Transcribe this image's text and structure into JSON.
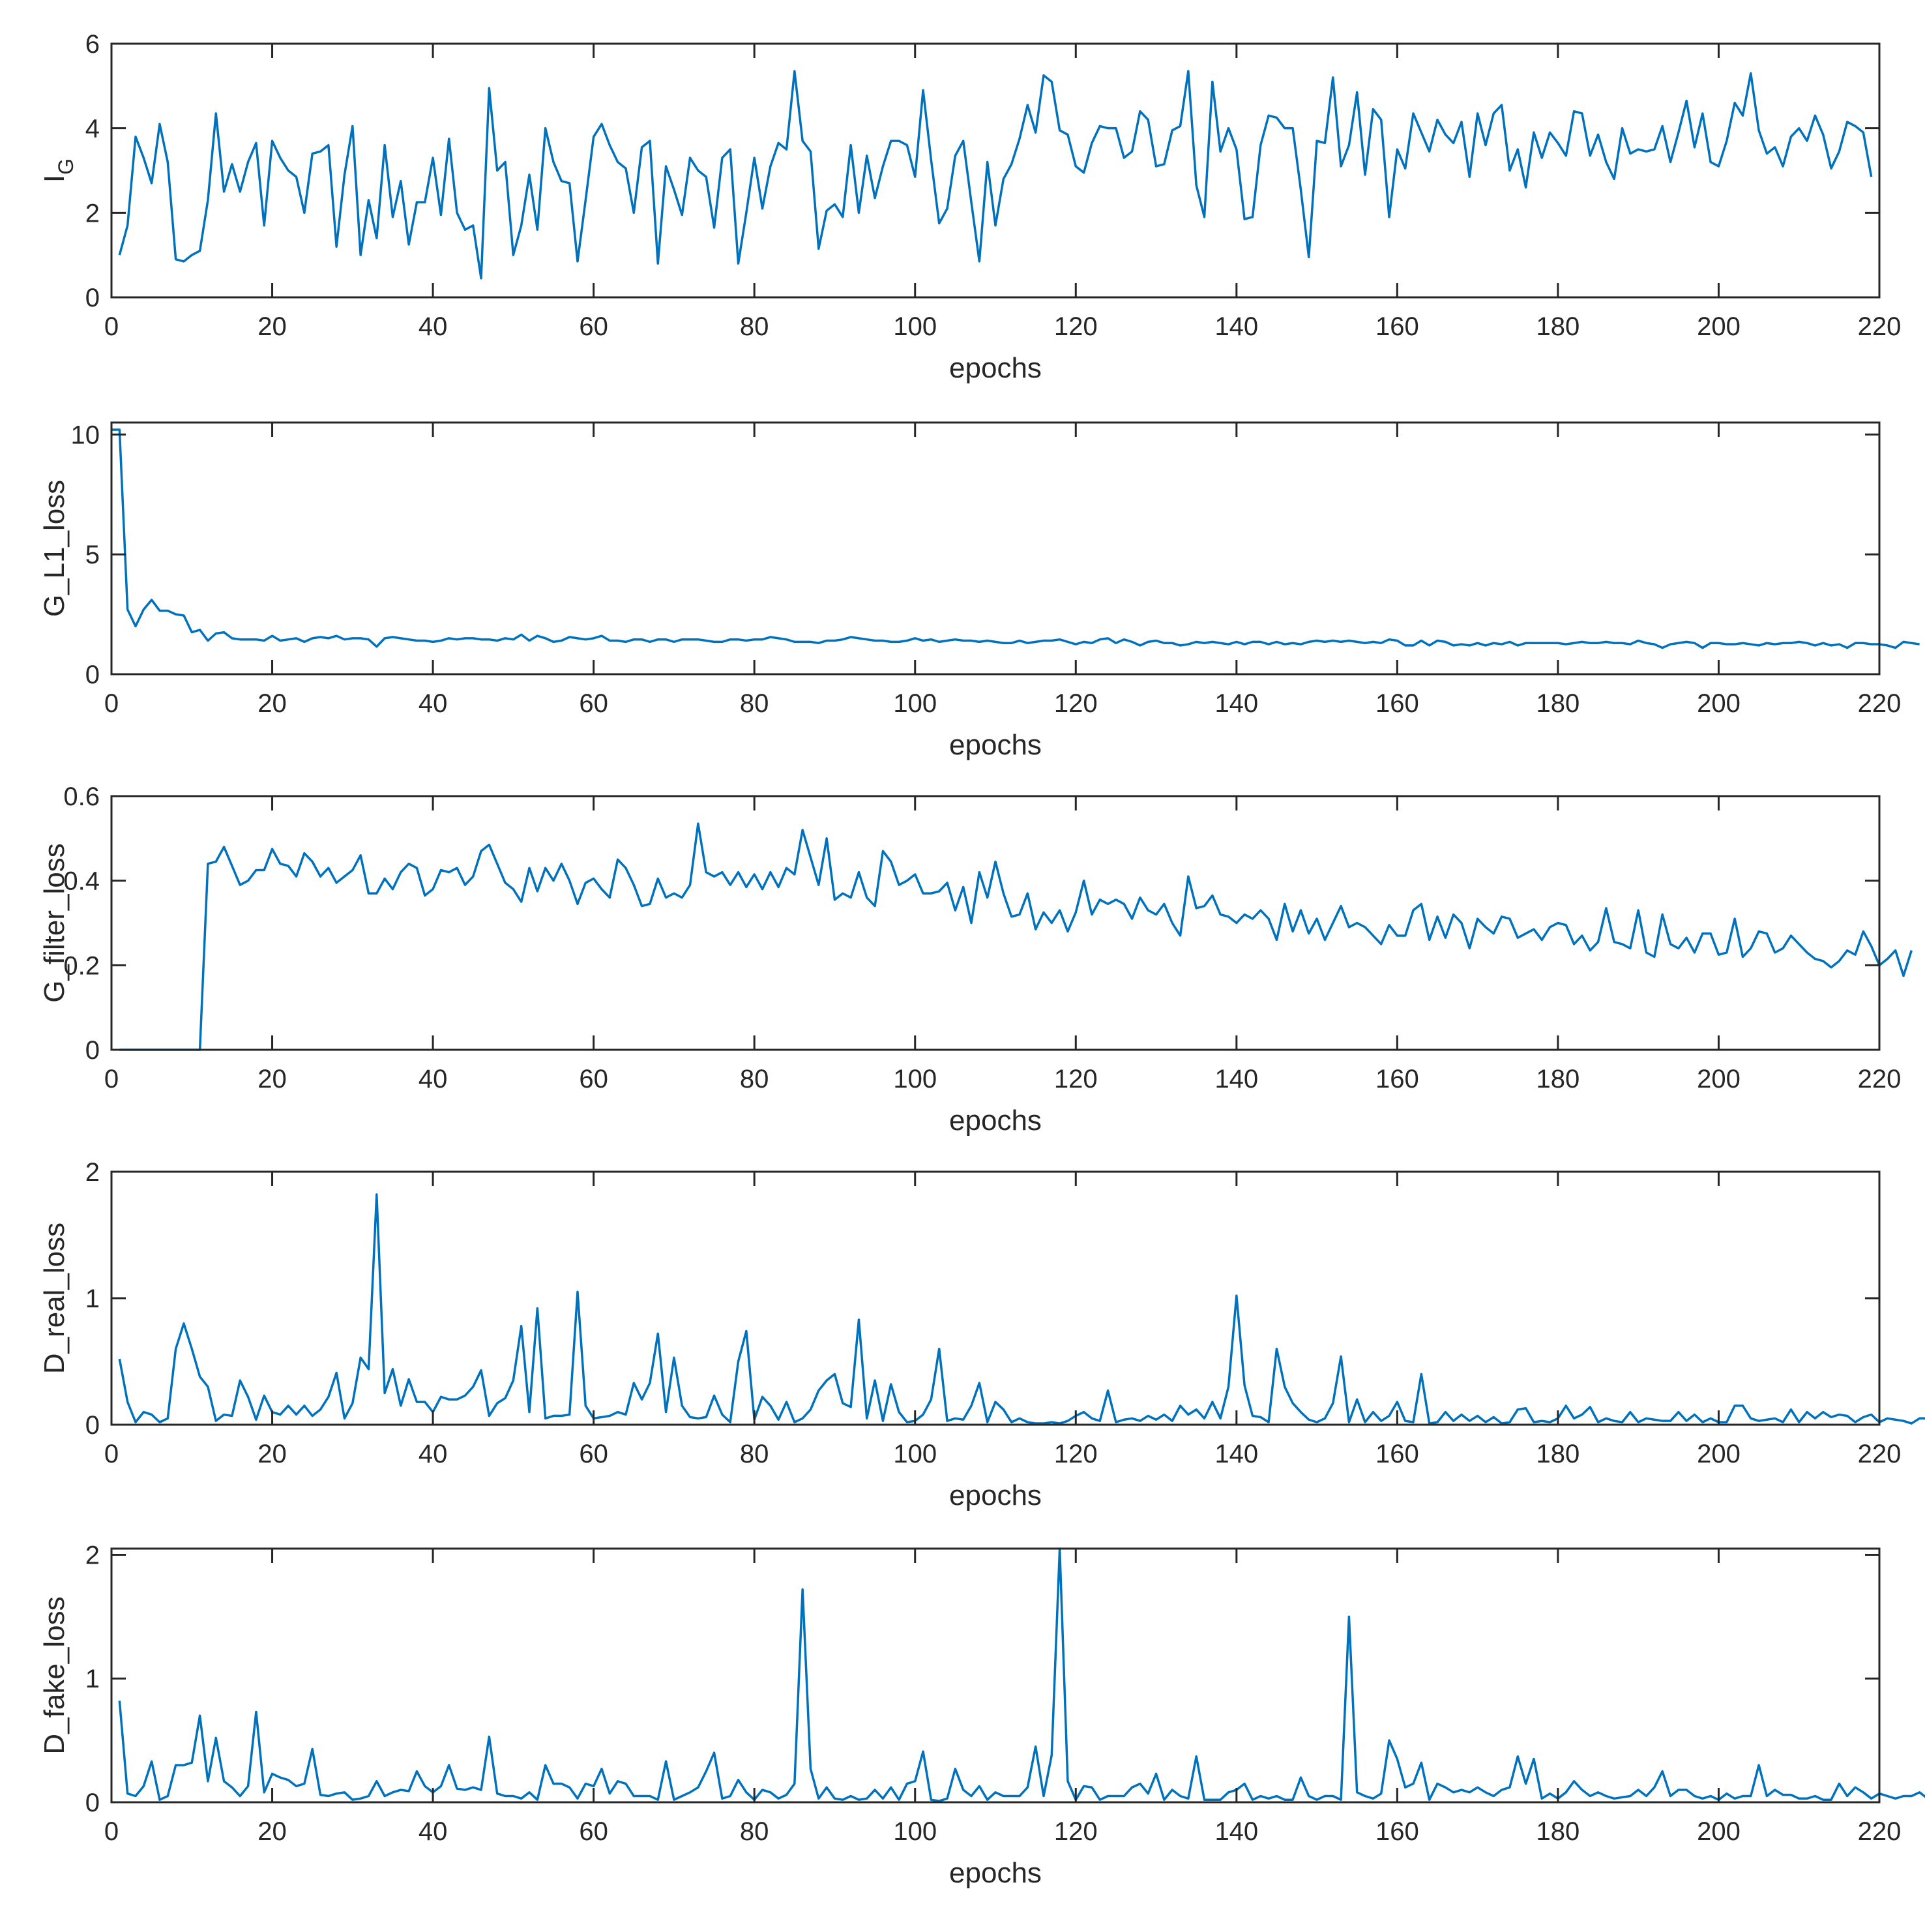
{
  "chart_data": [
    {
      "type": "line",
      "xlabel": "epochs",
      "ylabel": "I",
      "ylabel_sub": "G",
      "xlim": [
        0,
        220
      ],
      "ylim": [
        0,
        6
      ],
      "xticks": [
        "0",
        "20",
        "40",
        "60",
        "80",
        "100",
        "120",
        "140",
        "160",
        "180",
        "200",
        "220"
      ],
      "yticks": [
        "0",
        "2",
        "4",
        "6"
      ],
      "x_start": 1,
      "values": [
        1.0,
        1.7,
        3.8,
        3.3,
        2.7,
        4.1,
        3.2,
        0.9,
        0.85,
        1.0,
        1.1,
        2.3,
        4.35,
        2.5,
        3.15,
        2.5,
        3.2,
        3.65,
        1.7,
        3.7,
        3.3,
        3.0,
        2.85,
        2.0,
        3.4,
        3.45,
        3.6,
        1.2,
        2.9,
        4.05,
        1.0,
        2.3,
        1.4,
        3.6,
        1.9,
        2.75,
        1.25,
        2.25,
        2.25,
        3.3,
        1.95,
        3.75,
        2.0,
        1.6,
        1.7,
        0.45,
        4.95,
        3.0,
        3.2,
        1.0,
        1.7,
        2.9,
        1.6,
        4.0,
        3.2,
        2.75,
        2.7,
        0.85,
        2.3,
        3.8,
        4.1,
        3.6,
        3.2,
        3.05,
        2.0,
        3.55,
        3.7,
        0.8,
        3.1,
        2.55,
        1.95,
        3.3,
        3.0,
        2.85,
        1.65,
        3.3,
        3.5,
        0.8,
        2.0,
        3.3,
        2.1,
        3.1,
        3.65,
        3.5,
        5.35,
        3.7,
        3.45,
        1.15,
        2.05,
        2.2,
        1.9,
        3.6,
        2.0,
        3.35,
        2.35,
        3.1,
        3.7,
        3.7,
        3.6,
        2.85,
        4.9,
        3.25,
        1.75,
        2.1,
        3.35,
        3.7,
        2.25,
        0.85,
        3.2,
        1.7,
        2.8,
        3.15,
        3.75,
        4.55,
        3.9,
        5.25,
        5.1,
        3.95,
        3.85,
        3.1,
        2.95,
        3.65,
        4.05,
        4.0,
        4.0,
        3.3,
        3.45,
        4.4,
        4.2,
        3.1,
        3.15,
        3.95,
        4.05,
        5.35,
        2.65,
        1.9,
        5.1,
        3.45,
        4.0,
        3.5,
        1.85,
        1.9,
        3.6,
        4.3,
        4.25,
        4.0,
        4.0,
        2.55,
        0.95,
        3.7,
        3.65,
        5.2,
        3.1,
        3.6,
        4.85,
        2.9,
        4.45,
        4.2,
        1.9,
        3.5,
        3.05,
        4.35,
        3.9,
        3.45,
        4.2,
        3.85,
        3.65,
        4.15,
        2.85,
        4.35,
        3.6,
        4.35,
        4.55,
        3.0,
        3.5,
        2.6,
        3.9,
        3.3,
        3.9,
        3.65,
        3.35,
        4.4,
        4.35,
        3.35,
        3.85,
        3.2,
        2.8,
        4.0,
        3.4,
        3.5,
        3.45,
        3.5,
        4.05,
        3.2,
        3.9,
        4.65,
        3.55,
        4.35,
        3.2,
        3.1,
        3.7,
        4.6,
        4.3,
        5.3,
        3.95,
        3.4,
        3.55,
        3.1,
        3.8,
        4.0,
        3.7,
        4.3,
        3.85,
        3.05,
        3.45,
        4.15,
        4.05,
        3.9,
        2.85
      ]
    },
    {
      "type": "line",
      "xlabel": "epochs",
      "ylabel": "G_L1_loss",
      "xlim": [
        0,
        220
      ],
      "ylim": [
        0,
        10.5
      ],
      "xticks": [
        "0",
        "20",
        "40",
        "60",
        "80",
        "100",
        "120",
        "140",
        "160",
        "180",
        "200",
        "220"
      ],
      "yticks": [
        "0",
        "5",
        "10"
      ],
      "x_start": 0,
      "values": [
        10.2,
        10.2,
        2.7,
        2.0,
        2.7,
        3.1,
        2.65,
        2.65,
        2.5,
        2.45,
        1.75,
        1.85,
        1.4,
        1.7,
        1.75,
        1.5,
        1.45,
        1.45,
        1.45,
        1.4,
        1.6,
        1.4,
        1.45,
        1.5,
        1.35,
        1.5,
        1.55,
        1.5,
        1.6,
        1.45,
        1.5,
        1.5,
        1.45,
        1.15,
        1.5,
        1.55,
        1.5,
        1.45,
        1.4,
        1.4,
        1.35,
        1.4,
        1.5,
        1.45,
        1.5,
        1.5,
        1.45,
        1.45,
        1.4,
        1.5,
        1.45,
        1.65,
        1.4,
        1.6,
        1.5,
        1.35,
        1.4,
        1.55,
        1.5,
        1.45,
        1.5,
        1.6,
        1.4,
        1.4,
        1.35,
        1.45,
        1.45,
        1.35,
        1.45,
        1.45,
        1.35,
        1.45,
        1.45,
        1.45,
        1.4,
        1.35,
        1.35,
        1.45,
        1.45,
        1.4,
        1.45,
        1.45,
        1.55,
        1.5,
        1.45,
        1.35,
        1.35,
        1.35,
        1.3,
        1.4,
        1.4,
        1.45,
        1.55,
        1.5,
        1.45,
        1.4,
        1.4,
        1.35,
        1.35,
        1.4,
        1.5,
        1.4,
        1.45,
        1.35,
        1.4,
        1.45,
        1.4,
        1.4,
        1.35,
        1.4,
        1.35,
        1.3,
        1.3,
        1.4,
        1.3,
        1.35,
        1.4,
        1.4,
        1.45,
        1.35,
        1.25,
        1.35,
        1.3,
        1.45,
        1.5,
        1.3,
        1.45,
        1.35,
        1.2,
        1.35,
        1.4,
        1.3,
        1.3,
        1.2,
        1.25,
        1.35,
        1.3,
        1.35,
        1.3,
        1.25,
        1.35,
        1.25,
        1.35,
        1.35,
        1.25,
        1.35,
        1.25,
        1.3,
        1.25,
        1.35,
        1.4,
        1.35,
        1.4,
        1.35,
        1.4,
        1.35,
        1.3,
        1.35,
        1.3,
        1.45,
        1.4,
        1.2,
        1.2,
        1.4,
        1.2,
        1.4,
        1.35,
        1.2,
        1.25,
        1.2,
        1.3,
        1.2,
        1.3,
        1.25,
        1.35,
        1.2,
        1.3,
        1.3,
        1.3,
        1.3,
        1.3,
        1.25,
        1.3,
        1.35,
        1.3,
        1.3,
        1.35,
        1.3,
        1.3,
        1.25,
        1.4,
        1.3,
        1.25,
        1.1,
        1.25,
        1.3,
        1.35,
        1.3,
        1.1,
        1.3,
        1.3,
        1.25,
        1.25,
        1.3,
        1.25,
        1.2,
        1.3,
        1.25,
        1.3,
        1.3,
        1.35,
        1.3,
        1.2,
        1.3,
        1.2,
        1.25,
        1.1,
        1.3,
        1.3,
        1.25,
        1.25,
        1.2,
        1.1,
        1.35,
        1.3,
        1.25
      ]
    },
    {
      "type": "line",
      "xlabel": "epochs",
      "ylabel": "G_filter_loss",
      "xlim": [
        0,
        220
      ],
      "ylim": [
        0,
        0.6
      ],
      "xticks": [
        "0",
        "20",
        "40",
        "60",
        "80",
        "100",
        "120",
        "140",
        "160",
        "180",
        "200",
        "220"
      ],
      "yticks": [
        "0",
        "0.2",
        "0.4",
        "0.6"
      ],
      "x_start": 1,
      "values": [
        0,
        0,
        0,
        0,
        0,
        0,
        0,
        0,
        0,
        0,
        0,
        0.44,
        0.445,
        0.48,
        0.435,
        0.39,
        0.4,
        0.425,
        0.425,
        0.475,
        0.44,
        0.435,
        0.41,
        0.465,
        0.445,
        0.41,
        0.43,
        0.395,
        0.41,
        0.425,
        0.46,
        0.37,
        0.37,
        0.405,
        0.38,
        0.42,
        0.44,
        0.43,
        0.365,
        0.38,
        0.425,
        0.42,
        0.43,
        0.39,
        0.41,
        0.47,
        0.485,
        0.44,
        0.395,
        0.38,
        0.35,
        0.43,
        0.375,
        0.43,
        0.4,
        0.44,
        0.4,
        0.345,
        0.395,
        0.405,
        0.38,
        0.36,
        0.45,
        0.43,
        0.39,
        0.34,
        0.345,
        0.405,
        0.36,
        0.37,
        0.36,
        0.39,
        0.535,
        0.42,
        0.41,
        0.42,
        0.39,
        0.42,
        0.385,
        0.415,
        0.38,
        0.42,
        0.385,
        0.43,
        0.415,
        0.52,
        0.455,
        0.39,
        0.5,
        0.355,
        0.37,
        0.36,
        0.42,
        0.36,
        0.34,
        0.47,
        0.445,
        0.39,
        0.4,
        0.415,
        0.37,
        0.37,
        0.375,
        0.395,
        0.33,
        0.385,
        0.3,
        0.42,
        0.36,
        0.445,
        0.37,
        0.315,
        0.32,
        0.37,
        0.285,
        0.325,
        0.3,
        0.33,
        0.28,
        0.325,
        0.4,
        0.32,
        0.355,
        0.345,
        0.355,
        0.345,
        0.31,
        0.36,
        0.33,
        0.32,
        0.345,
        0.3,
        0.27,
        0.41,
        0.335,
        0.34,
        0.365,
        0.32,
        0.315,
        0.3,
        0.32,
        0.31,
        0.33,
        0.31,
        0.26,
        0.345,
        0.28,
        0.33,
        0.275,
        0.31,
        0.26,
        0.3,
        0.34,
        0.29,
        0.3,
        0.29,
        0.27,
        0.25,
        0.295,
        0.27,
        0.27,
        0.33,
        0.345,
        0.26,
        0.315,
        0.265,
        0.32,
        0.3,
        0.24,
        0.31,
        0.29,
        0.275,
        0.315,
        0.31,
        0.265,
        0.275,
        0.285,
        0.26,
        0.29,
        0.3,
        0.295,
        0.25,
        0.27,
        0.235,
        0.255,
        0.335,
        0.255,
        0.25,
        0.24,
        0.33,
        0.23,
        0.22,
        0.32,
        0.25,
        0.24,
        0.265,
        0.23,
        0.275,
        0.275,
        0.225,
        0.23,
        0.31,
        0.22,
        0.24,
        0.28,
        0.275,
        0.23,
        0.24,
        0.27,
        0.25,
        0.23,
        0.215,
        0.21,
        0.195,
        0.21,
        0.235,
        0.225,
        0.28,
        0.245,
        0.2,
        0.215,
        0.235,
        0.175,
        0.235
      ]
    },
    {
      "type": "line",
      "xlabel": "epochs",
      "ylabel": "D_real_loss",
      "xlim": [
        0,
        220
      ],
      "ylim": [
        0,
        2
      ],
      "xticks": [
        "0",
        "20",
        "40",
        "60",
        "80",
        "100",
        "120",
        "140",
        "160",
        "180",
        "200",
        "220"
      ],
      "yticks": [
        "0",
        "1",
        "2"
      ],
      "x_start": 1,
      "values": [
        0.52,
        0.18,
        0.02,
        0.1,
        0.08,
        0.02,
        0.05,
        0.6,
        0.8,
        0.6,
        0.38,
        0.3,
        0.03,
        0.08,
        0.07,
        0.35,
        0.22,
        0.04,
        0.23,
        0.1,
        0.08,
        0.15,
        0.08,
        0.15,
        0.07,
        0.12,
        0.22,
        0.41,
        0.05,
        0.17,
        0.53,
        0.44,
        1.82,
        0.25,
        0.44,
        0.15,
        0.36,
        0.18,
        0.18,
        0.1,
        0.22,
        0.2,
        0.2,
        0.23,
        0.3,
        0.43,
        0.07,
        0.17,
        0.21,
        0.35,
        0.78,
        0.1,
        0.92,
        0.05,
        0.07,
        0.07,
        0.08,
        1.05,
        0.15,
        0.05,
        0.06,
        0.07,
        0.1,
        0.08,
        0.33,
        0.2,
        0.33,
        0.72,
        0.1,
        0.53,
        0.15,
        0.06,
        0.05,
        0.06,
        0.23,
        0.08,
        0.02,
        0.5,
        0.74,
        0.04,
        0.22,
        0.15,
        0.04,
        0.18,
        0.02,
        0.05,
        0.12,
        0.27,
        0.35,
        0.4,
        0.17,
        0.14,
        0.83,
        0.05,
        0.35,
        0.03,
        0.32,
        0.1,
        0.02,
        0.03,
        0.08,
        0.2,
        0.6,
        0.03,
        0.05,
        0.04,
        0.15,
        0.33,
        0.02,
        0.18,
        0.12,
        0.02,
        0.05,
        0.02,
        0.01,
        0.01,
        0.02,
        0.01,
        0.03,
        0.07,
        0.1,
        0.05,
        0.03,
        0.27,
        0.02,
        0.04,
        0.05,
        0.03,
        0.07,
        0.04,
        0.08,
        0.03,
        0.15,
        0.08,
        0.12,
        0.05,
        0.18,
        0.05,
        0.3,
        1.02,
        0.31,
        0.07,
        0.06,
        0.02,
        0.6,
        0.3,
        0.17,
        0.1,
        0.04,
        0.02,
        0.05,
        0.17,
        0.54,
        0.02,
        0.2,
        0.02,
        0.1,
        0.03,
        0.07,
        0.18,
        0.03,
        0.02,
        0.4,
        0.01,
        0.02,
        0.1,
        0.03,
        0.08,
        0.03,
        0.07,
        0.02,
        0.06,
        0.01,
        0.02,
        0.12,
        0.13,
        0.02,
        0.03,
        0.02,
        0.05,
        0.15,
        0.05,
        0.08,
        0.14,
        0.02,
        0.05,
        0.03,
        0.02,
        0.1,
        0.02,
        0.05,
        0.04,
        0.03,
        0.03,
        0.1,
        0.03,
        0.08,
        0.02,
        0.05,
        0.02,
        0.02,
        0.15,
        0.15,
        0.05,
        0.03,
        0.04,
        0.05,
        0.02,
        0.12,
        0.02,
        0.1,
        0.05,
        0.1,
        0.06,
        0.08,
        0.07,
        0.02,
        0.06,
        0.08,
        0.02,
        0.05,
        0.04,
        0.03,
        0.01,
        0.05,
        0.05,
        0.3,
        0.04,
        0.03,
        0.07,
        0.01,
        0.05
      ]
    },
    {
      "type": "line",
      "xlabel": "epochs",
      "ylabel": "D_fake_loss",
      "xlim": [
        0,
        220
      ],
      "ylim": [
        0,
        2.05
      ],
      "xticks": [
        "0",
        "20",
        "40",
        "60",
        "80",
        "100",
        "120",
        "140",
        "160",
        "180",
        "200",
        "220"
      ],
      "yticks": [
        "0",
        "1",
        "2"
      ],
      "x_start": 1,
      "values": [
        0.82,
        0.07,
        0.05,
        0.13,
        0.33,
        0.02,
        0.05,
        0.3,
        0.3,
        0.32,
        0.7,
        0.17,
        0.52,
        0.17,
        0.12,
        0.05,
        0.13,
        0.73,
        0.08,
        0.23,
        0.2,
        0.18,
        0.13,
        0.15,
        0.43,
        0.06,
        0.05,
        0.07,
        0.08,
        0.02,
        0.03,
        0.05,
        0.17,
        0.05,
        0.08,
        0.1,
        0.09,
        0.25,
        0.13,
        0.08,
        0.13,
        0.3,
        0.11,
        0.1,
        0.12,
        0.1,
        0.53,
        0.07,
        0.05,
        0.05,
        0.03,
        0.08,
        0.02,
        0.3,
        0.15,
        0.15,
        0.12,
        0.03,
        0.15,
        0.13,
        0.27,
        0.07,
        0.17,
        0.15,
        0.05,
        0.05,
        0.05,
        0.02,
        0.33,
        0.02,
        0.05,
        0.08,
        0.12,
        0.25,
        0.4,
        0.03,
        0.05,
        0.18,
        0.08,
        0.02,
        0.1,
        0.08,
        0.03,
        0.06,
        0.15,
        1.72,
        0.27,
        0.03,
        0.12,
        0.03,
        0.02,
        0.05,
        0.02,
        0.03,
        0.1,
        0.03,
        0.12,
        0.02,
        0.15,
        0.17,
        0.41,
        0.02,
        0.01,
        0.03,
        0.27,
        0.1,
        0.05,
        0.13,
        0.02,
        0.08,
        0.05,
        0.05,
        0.05,
        0.12,
        0.45,
        0.05,
        0.38,
        2.05,
        0.17,
        0.02,
        0.13,
        0.12,
        0.02,
        0.05,
        0.05,
        0.05,
        0.12,
        0.15,
        0.07,
        0.23,
        0.02,
        0.1,
        0.05,
        0.03,
        0.37,
        0.02,
        0.02,
        0.02,
        0.08,
        0.1,
        0.15,
        0.02,
        0.05,
        0.03,
        0.05,
        0.02,
        0.02,
        0.2,
        0.05,
        0.02,
        0.05,
        0.05,
        0.02,
        1.5,
        0.08,
        0.05,
        0.03,
        0.07,
        0.5,
        0.35,
        0.12,
        0.15,
        0.32,
        0.02,
        0.15,
        0.12,
        0.08,
        0.1,
        0.08,
        0.12,
        0.08,
        0.05,
        0.1,
        0.12,
        0.37,
        0.15,
        0.35,
        0.03,
        0.07,
        0.03,
        0.08,
        0.17,
        0.1,
        0.05,
        0.08,
        0.05,
        0.03,
        0.04,
        0.05,
        0.1,
        0.05,
        0.12,
        0.25,
        0.05,
        0.1,
        0.1,
        0.05,
        0.03,
        0.05,
        0.02,
        0.07,
        0.03,
        0.05,
        0.05,
        0.3,
        0.05,
        0.1,
        0.06,
        0.06,
        0.03,
        0.03,
        0.05,
        0.02,
        0.02,
        0.15,
        0.05,
        0.12,
        0.08,
        0.03,
        0.07,
        0.05,
        0.03,
        0.05,
        0.05,
        0.08,
        0.03,
        0.03,
        0.05,
        0.1
      ]
    }
  ],
  "colors": {
    "series": "#0072BD",
    "axis": "#262626",
    "background": "#ffffff"
  }
}
